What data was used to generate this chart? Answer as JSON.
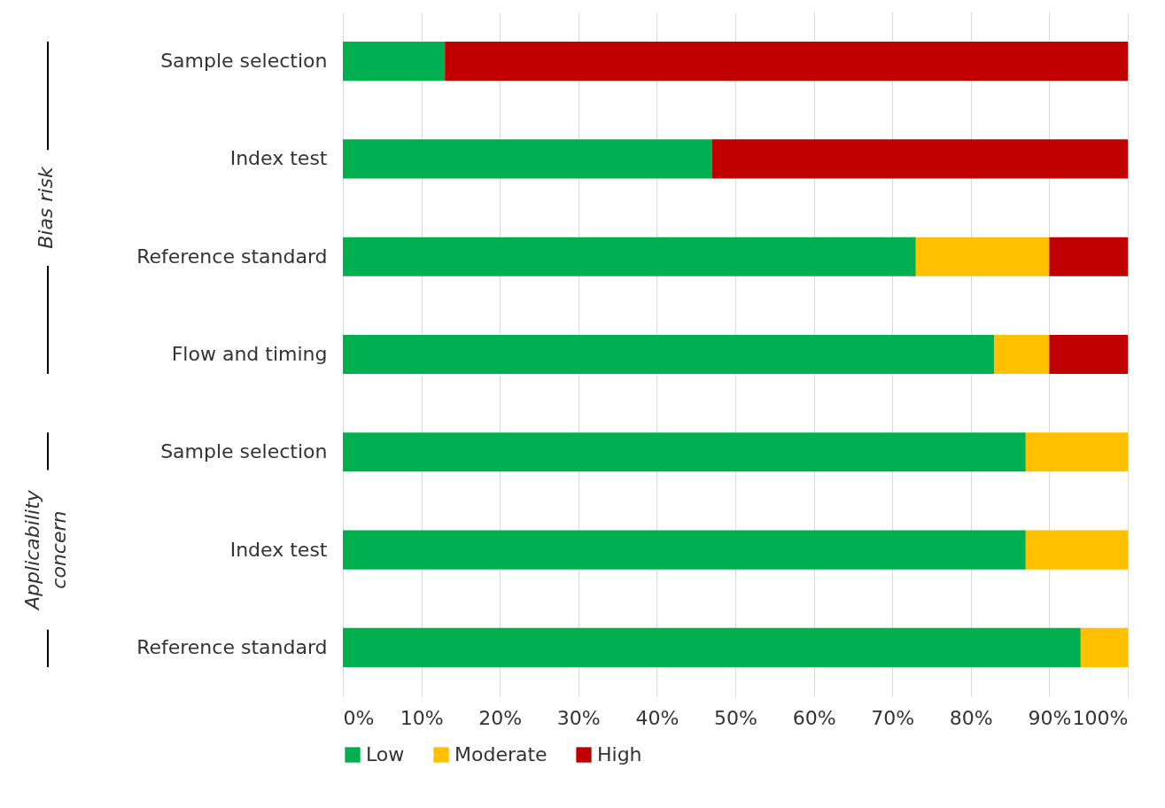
{
  "chart_data": {
    "type": "bar",
    "orientation": "horizontal",
    "stacked": true,
    "categories": [
      "Sample selection",
      "Index test",
      "Reference standard",
      "Flow and timing",
      "Sample selection",
      "Index test",
      "Reference standard"
    ],
    "series": [
      {
        "name": "Low",
        "color": "#00b050",
        "values": [
          13,
          47,
          73,
          83,
          87,
          87,
          94
        ]
      },
      {
        "name": "Moderate",
        "color": "#ffc000",
        "values": [
          0,
          0,
          17,
          7,
          13,
          13,
          6
        ]
      },
      {
        "name": "High",
        "color": "#c00000",
        "values": [
          87,
          53,
          10,
          10,
          0,
          0,
          0
        ]
      }
    ],
    "xlim": [
      0,
      100
    ],
    "xticks": [
      {
        "value": 0,
        "label": "0%"
      },
      {
        "value": 10,
        "label": "10%"
      },
      {
        "value": 20,
        "label": "20%"
      },
      {
        "value": 30,
        "label": "30%"
      },
      {
        "value": 40,
        "label": "40%"
      },
      {
        "value": 50,
        "label": "50%"
      },
      {
        "value": 60,
        "label": "60%"
      },
      {
        "value": 70,
        "label": "70%"
      },
      {
        "value": 80,
        "label": "80%"
      },
      {
        "value": 90,
        "label": "90%"
      },
      {
        "value": 100,
        "label": "100%"
      }
    ],
    "grid": "x",
    "legend": "bottom",
    "annotations": [
      "Bias risk",
      "Applicability concern"
    ]
  }
}
